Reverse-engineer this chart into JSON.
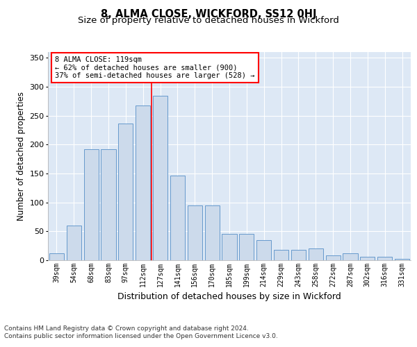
{
  "title": "8, ALMA CLOSE, WICKFORD, SS12 0HJ",
  "subtitle": "Size of property relative to detached houses in Wickford",
  "xlabel": "Distribution of detached houses by size in Wickford",
  "ylabel": "Number of detached properties",
  "categories": [
    "39sqm",
    "54sqm",
    "68sqm",
    "83sqm",
    "97sqm",
    "112sqm",
    "127sqm",
    "141sqm",
    "156sqm",
    "170sqm",
    "185sqm",
    "199sqm",
    "214sqm",
    "229sqm",
    "243sqm",
    "258sqm",
    "272sqm",
    "287sqm",
    "302sqm",
    "316sqm",
    "331sqm"
  ],
  "values": [
    12,
    60,
    192,
    192,
    237,
    268,
    285,
    147,
    95,
    95,
    46,
    46,
    35,
    18,
    18,
    20,
    9,
    12,
    6,
    6,
    3
  ],
  "bar_color": "#ccdaeb",
  "bar_edge_color": "#6699cc",
  "vline_x_index": 6,
  "vline_color": "red",
  "annotation_text": "8 ALMA CLOSE: 119sqm\n← 62% of detached houses are smaller (900)\n37% of semi-detached houses are larger (528) →",
  "annotation_box_color": "white",
  "annotation_box_edge_color": "red",
  "ylim": [
    0,
    360
  ],
  "yticks": [
    0,
    50,
    100,
    150,
    200,
    250,
    300,
    350
  ],
  "plot_bg_color": "#dde8f5",
  "footer_line1": "Contains HM Land Registry data © Crown copyright and database right 2024.",
  "footer_line2": "Contains public sector information licensed under the Open Government Licence v3.0.",
  "title_fontsize": 10.5,
  "subtitle_fontsize": 9.5,
  "ylabel_fontsize": 8.5,
  "xlabel_fontsize": 9,
  "tick_fontsize": 7,
  "annotation_fontsize": 7.5,
  "footer_fontsize": 6.5
}
